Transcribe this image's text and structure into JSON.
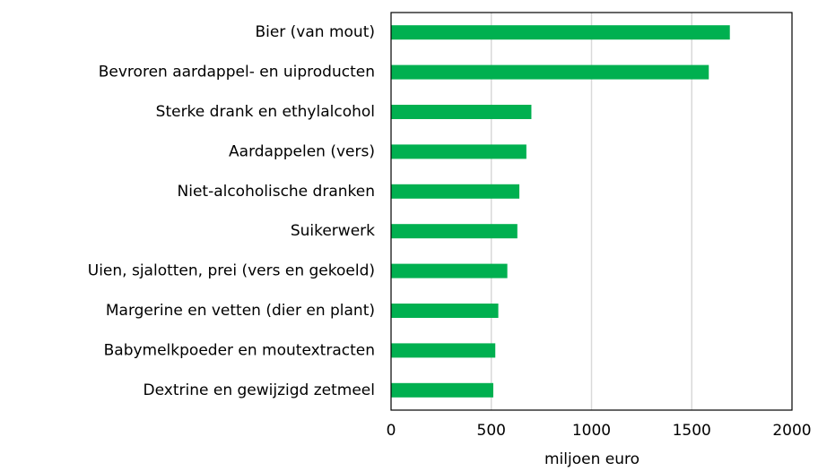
{
  "chart_data": {
    "type": "bar",
    "orientation": "horizontal",
    "x_label": "miljoen euro",
    "categories": [
      "Bier (van mout)",
      "Bevroren aardappel- en uiproducten",
      "Sterke drank en ethylalcohol",
      "Aardappelen (vers)",
      "Niet-alcoholische dranken",
      "Suikerwerk",
      "Uien, sjalotten, prei (vers en gekoeld)",
      "Margerine en vetten (dier en plant)",
      "Babymelkpoeder en moutextracten",
      "Dextrine en gewijzigd zetmeel"
    ],
    "values": [
      1690,
      1585,
      700,
      675,
      640,
      630,
      580,
      535,
      520,
      510
    ],
    "color": "#00b050",
    "xlim": [
      0,
      2000
    ],
    "xticks": [
      0,
      500,
      1000,
      1500,
      2000
    ],
    "grid": true
  }
}
